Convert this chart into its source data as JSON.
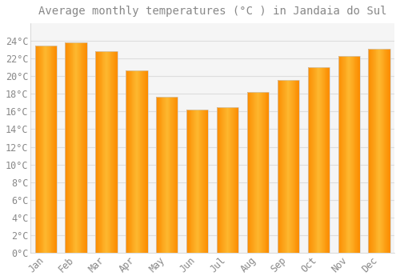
{
  "title": "Average monthly temperatures (°C ) in Jandaia do Sul",
  "months": [
    "Jan",
    "Feb",
    "Mar",
    "Apr",
    "May",
    "Jun",
    "Jul",
    "Aug",
    "Sep",
    "Oct",
    "Nov",
    "Dec"
  ],
  "values": [
    23.5,
    23.8,
    22.8,
    20.7,
    17.7,
    16.2,
    16.5,
    18.2,
    19.6,
    21.0,
    22.3,
    23.1
  ],
  "bar_color_main": "#FFA726",
  "bar_color_light": "#FFD54F",
  "bar_color_dark": "#FB8C00",
  "background_color": "#FFFFFF",
  "plot_bg_color": "#F5F5F5",
  "grid_color": "#DDDDDD",
  "text_color": "#888888",
  "border_color": "#CCCCCC",
  "ylim": [
    0,
    26
  ],
  "yticks": [
    0,
    2,
    4,
    6,
    8,
    10,
    12,
    14,
    16,
    18,
    20,
    22,
    24
  ],
  "title_fontsize": 10,
  "tick_fontsize": 8.5,
  "bar_width": 0.72
}
